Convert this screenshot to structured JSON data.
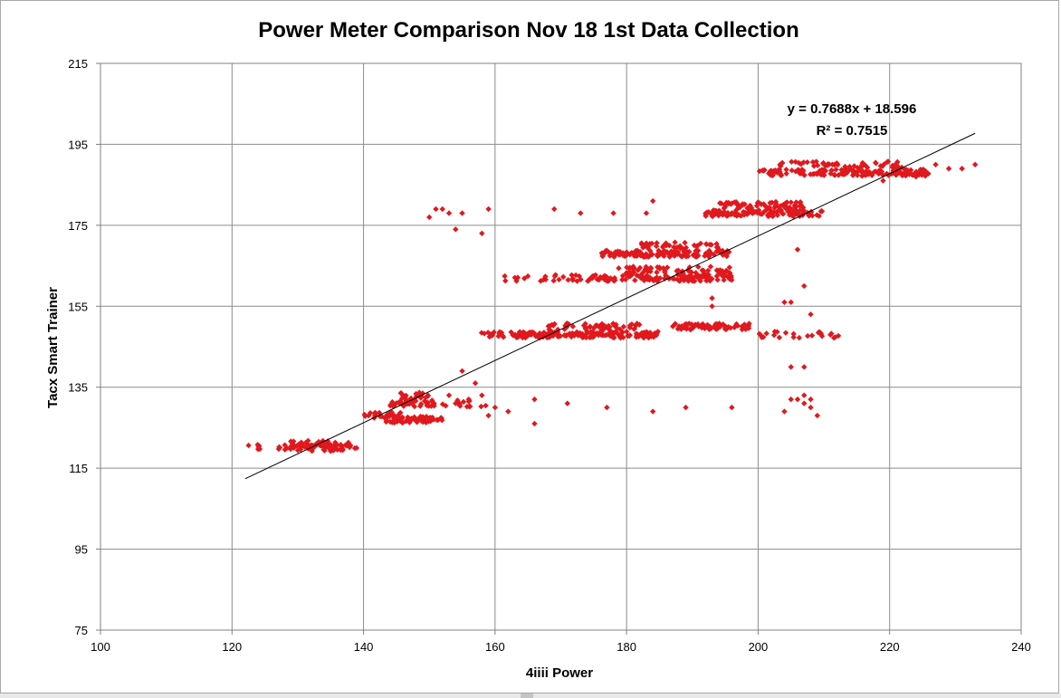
{
  "chart_data": {
    "type": "scatter",
    "title": "Power Meter Comparison Nov 18 1st Data Collection",
    "xlabel": "4iiii Power",
    "ylabel": "Tacx Smart Trainer",
    "xlim": [
      100,
      240
    ],
    "ylim": [
      75,
      215
    ],
    "xticks": [
      "100",
      "120",
      "140",
      "160",
      "180",
      "200",
      "220",
      "240"
    ],
    "yticks": [
      "75",
      "95",
      "115",
      "135",
      "155",
      "175",
      "195",
      "215"
    ],
    "grid": true,
    "legend": "none",
    "marker": "diamond",
    "marker_color": "#e0191e",
    "trendline": {
      "type": "linear",
      "slope": 0.7688,
      "intercept": 18.596,
      "x_range": [
        122,
        233
      ],
      "equation": "y = 0.7688x + 18.596",
      "r_squared_label": "R² = 0.7515"
    },
    "clusters": [
      {
        "x_range": [
          122,
          125
        ],
        "y": 120,
        "count": 6
      },
      {
        "x_range": [
          127,
          139
        ],
        "y": 120,
        "count": 55
      },
      {
        "x_range": [
          128,
          138
        ],
        "y": 121,
        "count": 30
      },
      {
        "x_range": [
          140,
          146
        ],
        "y": 128,
        "count": 30
      },
      {
        "x_range": [
          143,
          152
        ],
        "y": 127,
        "count": 60
      },
      {
        "x_range": [
          144,
          151
        ],
        "y": 131,
        "count": 40
      },
      {
        "x_range": [
          145,
          150
        ],
        "y": 133,
        "count": 20
      },
      {
        "x_range": [
          152,
          159
        ],
        "y": 131,
        "count": 14
      },
      {
        "x_range": [
          157,
          170
        ],
        "y": 148,
        "count": 35
      },
      {
        "x_range": [
          163,
          185
        ],
        "y": 148,
        "count": 150
      },
      {
        "x_range": [
          168,
          182
        ],
        "y": 150,
        "count": 50
      },
      {
        "x_range": [
          187,
          199
        ],
        "y": 150,
        "count": 80
      },
      {
        "x_range": [
          200,
          210
        ],
        "y": 148,
        "count": 18
      },
      {
        "x_range": [
          209,
          213
        ],
        "y": 148,
        "count": 8
      },
      {
        "x_range": [
          161,
          174
        ],
        "y": 162,
        "count": 25
      },
      {
        "x_range": [
          174,
          196
        ],
        "y": 162,
        "count": 120
      },
      {
        "x_range": [
          178,
          196
        ],
        "y": 164,
        "count": 60
      },
      {
        "x_range": [
          176,
          196
        ],
        "y": 168,
        "count": 130
      },
      {
        "x_range": [
          182,
          194
        ],
        "y": 170,
        "count": 40
      },
      {
        "x_range": [
          192,
          210
        ],
        "y": 178,
        "count": 110
      },
      {
        "x_range": [
          194,
          207
        ],
        "y": 180,
        "count": 60
      },
      {
        "x_range": [
          200,
          226
        ],
        "y": 188,
        "count": 160
      },
      {
        "x_range": [
          203,
          222
        ],
        "y": 190,
        "count": 50
      }
    ],
    "scattered_points": [
      [
        150,
        177
      ],
      [
        151,
        179
      ],
      [
        152,
        179
      ],
      [
        153,
        178
      ],
      [
        155,
        178
      ],
      [
        159,
        179
      ],
      [
        154,
        174
      ],
      [
        158,
        173
      ],
      [
        169,
        179
      ],
      [
        173,
        178
      ],
      [
        178,
        178
      ],
      [
        183,
        178
      ],
      [
        184,
        181
      ],
      [
        160,
        130
      ],
      [
        162,
        129
      ],
      [
        166,
        126
      ],
      [
        166,
        132
      ],
      [
        171,
        131
      ],
      [
        177,
        130
      ],
      [
        184,
        129
      ],
      [
        189,
        130
      ],
      [
        196,
        130
      ],
      [
        204,
        129
      ],
      [
        205,
        132
      ],
      [
        206,
        132
      ],
      [
        207,
        131
      ],
      [
        207,
        133
      ],
      [
        208,
        130
      ],
      [
        208,
        132
      ],
      [
        209,
        128
      ],
      [
        205,
        140
      ],
      [
        207,
        140
      ],
      [
        206,
        169
      ],
      [
        204,
        156
      ],
      [
        205,
        156
      ],
      [
        207,
        160
      ],
      [
        208,
        153
      ],
      [
        193,
        157
      ],
      [
        193,
        155
      ],
      [
        155,
        139
      ],
      [
        157,
        136
      ],
      [
        159,
        128
      ],
      [
        158,
        133
      ],
      [
        153,
        133
      ],
      [
        154,
        131
      ],
      [
        156,
        132
      ],
      [
        219,
        186
      ],
      [
        224,
        187
      ],
      [
        227,
        190
      ],
      [
        229,
        189
      ],
      [
        231,
        189
      ],
      [
        233,
        190
      ]
    ]
  }
}
